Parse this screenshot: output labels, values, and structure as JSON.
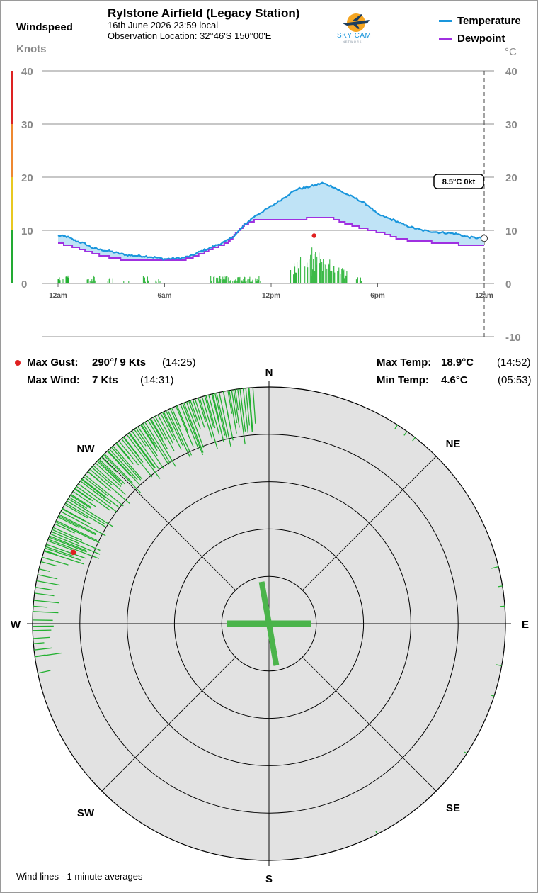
{
  "header": {
    "windspeed_label": "Windspeed",
    "knots_label": "Knots",
    "station_title": "Rylstone Airfield (Legacy Station)",
    "date_time": "16th June 2026  23:59 local",
    "location": "Observation Location: 32°46'S 150°00'E",
    "logo_text": "SKY CAM",
    "logo_subtext": "NETWORK",
    "legend_temperature": "Temperature",
    "legend_dewpoint": "Dewpoint",
    "degc_label": "°C"
  },
  "colors": {
    "temperature": "#1a96dc",
    "dewpoint": "#a030e0",
    "fill": "#bfe3f6",
    "wind": "#22b030",
    "gust": "#e02020",
    "rose_bg": "#e2e2e2"
  },
  "chart_data": [
    {
      "type": "line",
      "x_ticks": [
        "12am",
        "6am",
        "12pm",
        "6pm",
        "12am"
      ],
      "x_tick_hours": [
        0,
        6,
        12,
        18,
        24
      ],
      "x_range_hours": [
        0,
        24
      ],
      "left_axis": {
        "label": "Knots",
        "ticks": [
          "40",
          "30",
          "20",
          "10",
          "0"
        ],
        "range": [
          0,
          40
        ]
      },
      "right_axis": {
        "label": "°C",
        "ticks": [
          "40",
          "30",
          "20",
          "10",
          "0",
          "-10"
        ],
        "range": [
          -10,
          40
        ]
      },
      "speed_bands": [
        {
          "from": 0,
          "to": 10,
          "color": "#22aa33"
        },
        {
          "from": 10,
          "to": 20,
          "color": "#e8c820"
        },
        {
          "from": 20,
          "to": 30,
          "color": "#ee8830"
        },
        {
          "from": 30,
          "to": 40,
          "color": "#dd2222"
        }
      ],
      "series": [
        {
          "name": "Temperature",
          "hours": [
            0,
            0.5,
            1,
            1.5,
            2,
            2.5,
            3,
            3.5,
            4,
            4.5,
            5,
            5.5,
            6,
            6.5,
            7,
            7.5,
            8,
            8.5,
            9,
            9.5,
            10,
            10.5,
            11,
            11.5,
            12,
            12.5,
            13,
            13.5,
            14,
            14.5,
            14.87,
            15.5,
            16,
            16.5,
            17,
            17.5,
            18,
            18.5,
            19,
            19.5,
            20,
            20.5,
            21,
            21.5,
            22,
            22.5,
            23,
            23.5,
            24
          ],
          "values": [
            9,
            8.8,
            8,
            7.5,
            6.6,
            6.3,
            6,
            5.6,
            5.3,
            5.2,
            5.1,
            4.9,
            4.6,
            4.7,
            4.8,
            5.2,
            6,
            6.6,
            7.3,
            8,
            9.2,
            11,
            12.5,
            13.5,
            14.5,
            15.6,
            16.8,
            17.8,
            18.1,
            18.5,
            18.9,
            18.2,
            17.2,
            16.4,
            15.6,
            14.6,
            13,
            12.4,
            11.8,
            11,
            10.5,
            10,
            9.8,
            9.6,
            9.5,
            9.3,
            8.8,
            8.6,
            8.5
          ]
        },
        {
          "name": "Dewpoint",
          "hours": [
            0,
            0.5,
            1,
            1.5,
            2,
            2.5,
            3,
            3.5,
            4,
            4.5,
            5,
            5.5,
            6,
            6.5,
            7,
            7.5,
            8,
            8.5,
            9,
            9.5,
            10,
            10.5,
            11,
            11.5,
            12,
            12.5,
            13,
            13.5,
            14,
            14.5,
            15,
            15.5,
            16,
            16.5,
            17,
            17.5,
            18,
            18.5,
            19,
            19.5,
            20,
            20.5,
            21,
            21.5,
            22,
            22.5,
            23,
            23.5,
            24
          ],
          "values": [
            7.6,
            7.2,
            6.8,
            6.2,
            5.7,
            5.2,
            4.9,
            4.6,
            4.5,
            4.4,
            4.5,
            4.3,
            4.2,
            4.2,
            4.4,
            4.9,
            5.5,
            6.3,
            7,
            7.6,
            9.5,
            11.2,
            11.8,
            12,
            12.1,
            12,
            11.8,
            11.9,
            12.2,
            12.5,
            12.6,
            12.2,
            11.5,
            11,
            10.5,
            10.1,
            9.7,
            9.3,
            8.6,
            8.3,
            8,
            7.9,
            7.8,
            7.6,
            7.5,
            7.4,
            7.2,
            7.1,
            7.0
          ]
        }
      ],
      "wind_activity_hours": [
        [
          0.0,
          0.6
        ],
        [
          1.6,
          2.1
        ],
        [
          2.8,
          3.1
        ],
        [
          3.7,
          4.0
        ],
        [
          4.8,
          5.1
        ],
        [
          5.5,
          5.8
        ],
        [
          8.6,
          11.4
        ],
        [
          13.1,
          16.3
        ],
        [
          16.8,
          17.1
        ]
      ],
      "gust_marker": {
        "hour": 14.42,
        "knots": 9
      },
      "current_readout": {
        "text": "8.5°C  0kt",
        "hour": 24,
        "temp": 8.5
      }
    },
    {
      "type": "polar",
      "compass_labels": [
        "N",
        "NE",
        "E",
        "SE",
        "S",
        "SW",
        "W",
        "NW"
      ],
      "rings_knots": [
        5,
        10,
        15,
        20,
        25
      ],
      "max_knots": 25,
      "gust_point": {
        "direction_deg": 290,
        "knots": 9
      },
      "direction_clusters": [
        {
          "from": 288,
          "to": 356,
          "count": 120,
          "max_len_knots": 6
        },
        {
          "from": 262,
          "to": 288,
          "count": 18,
          "max_len_knots": 3
        },
        {
          "from": 258,
          "to": 262,
          "count": 2,
          "max_len_knots": 1.6
        },
        {
          "from": 33,
          "to": 38,
          "count": 3,
          "max_len_knots": 0.7
        },
        {
          "from": 76,
          "to": 86,
          "count": 3,
          "max_len_knots": 0.9
        },
        {
          "from": 100,
          "to": 108,
          "count": 2,
          "max_len_knots": 0.9
        },
        {
          "from": 122,
          "to": 124,
          "count": 1,
          "max_len_knots": 0.5
        },
        {
          "from": 152,
          "to": 154,
          "count": 1,
          "max_len_knots": 0.4
        }
      ],
      "center_cross": {
        "note": ""
      }
    }
  ],
  "stats": {
    "max_gust_label": "Max Gust:",
    "max_gust_value": "290°/ 9 Kts",
    "max_gust_time": "(14:25)",
    "max_wind_label": "Max Wind:",
    "max_wind_value": "7 Kts",
    "max_wind_time": "(14:31)",
    "max_temp_label": "Max Temp:",
    "max_temp_value": "18.9°C",
    "max_temp_time": "(14:52)",
    "min_temp_label": "Min Temp:",
    "min_temp_value": "4.6°C",
    "min_temp_time": "(05:53)"
  },
  "footer": {
    "note": "Wind lines - 1 minute averages"
  }
}
